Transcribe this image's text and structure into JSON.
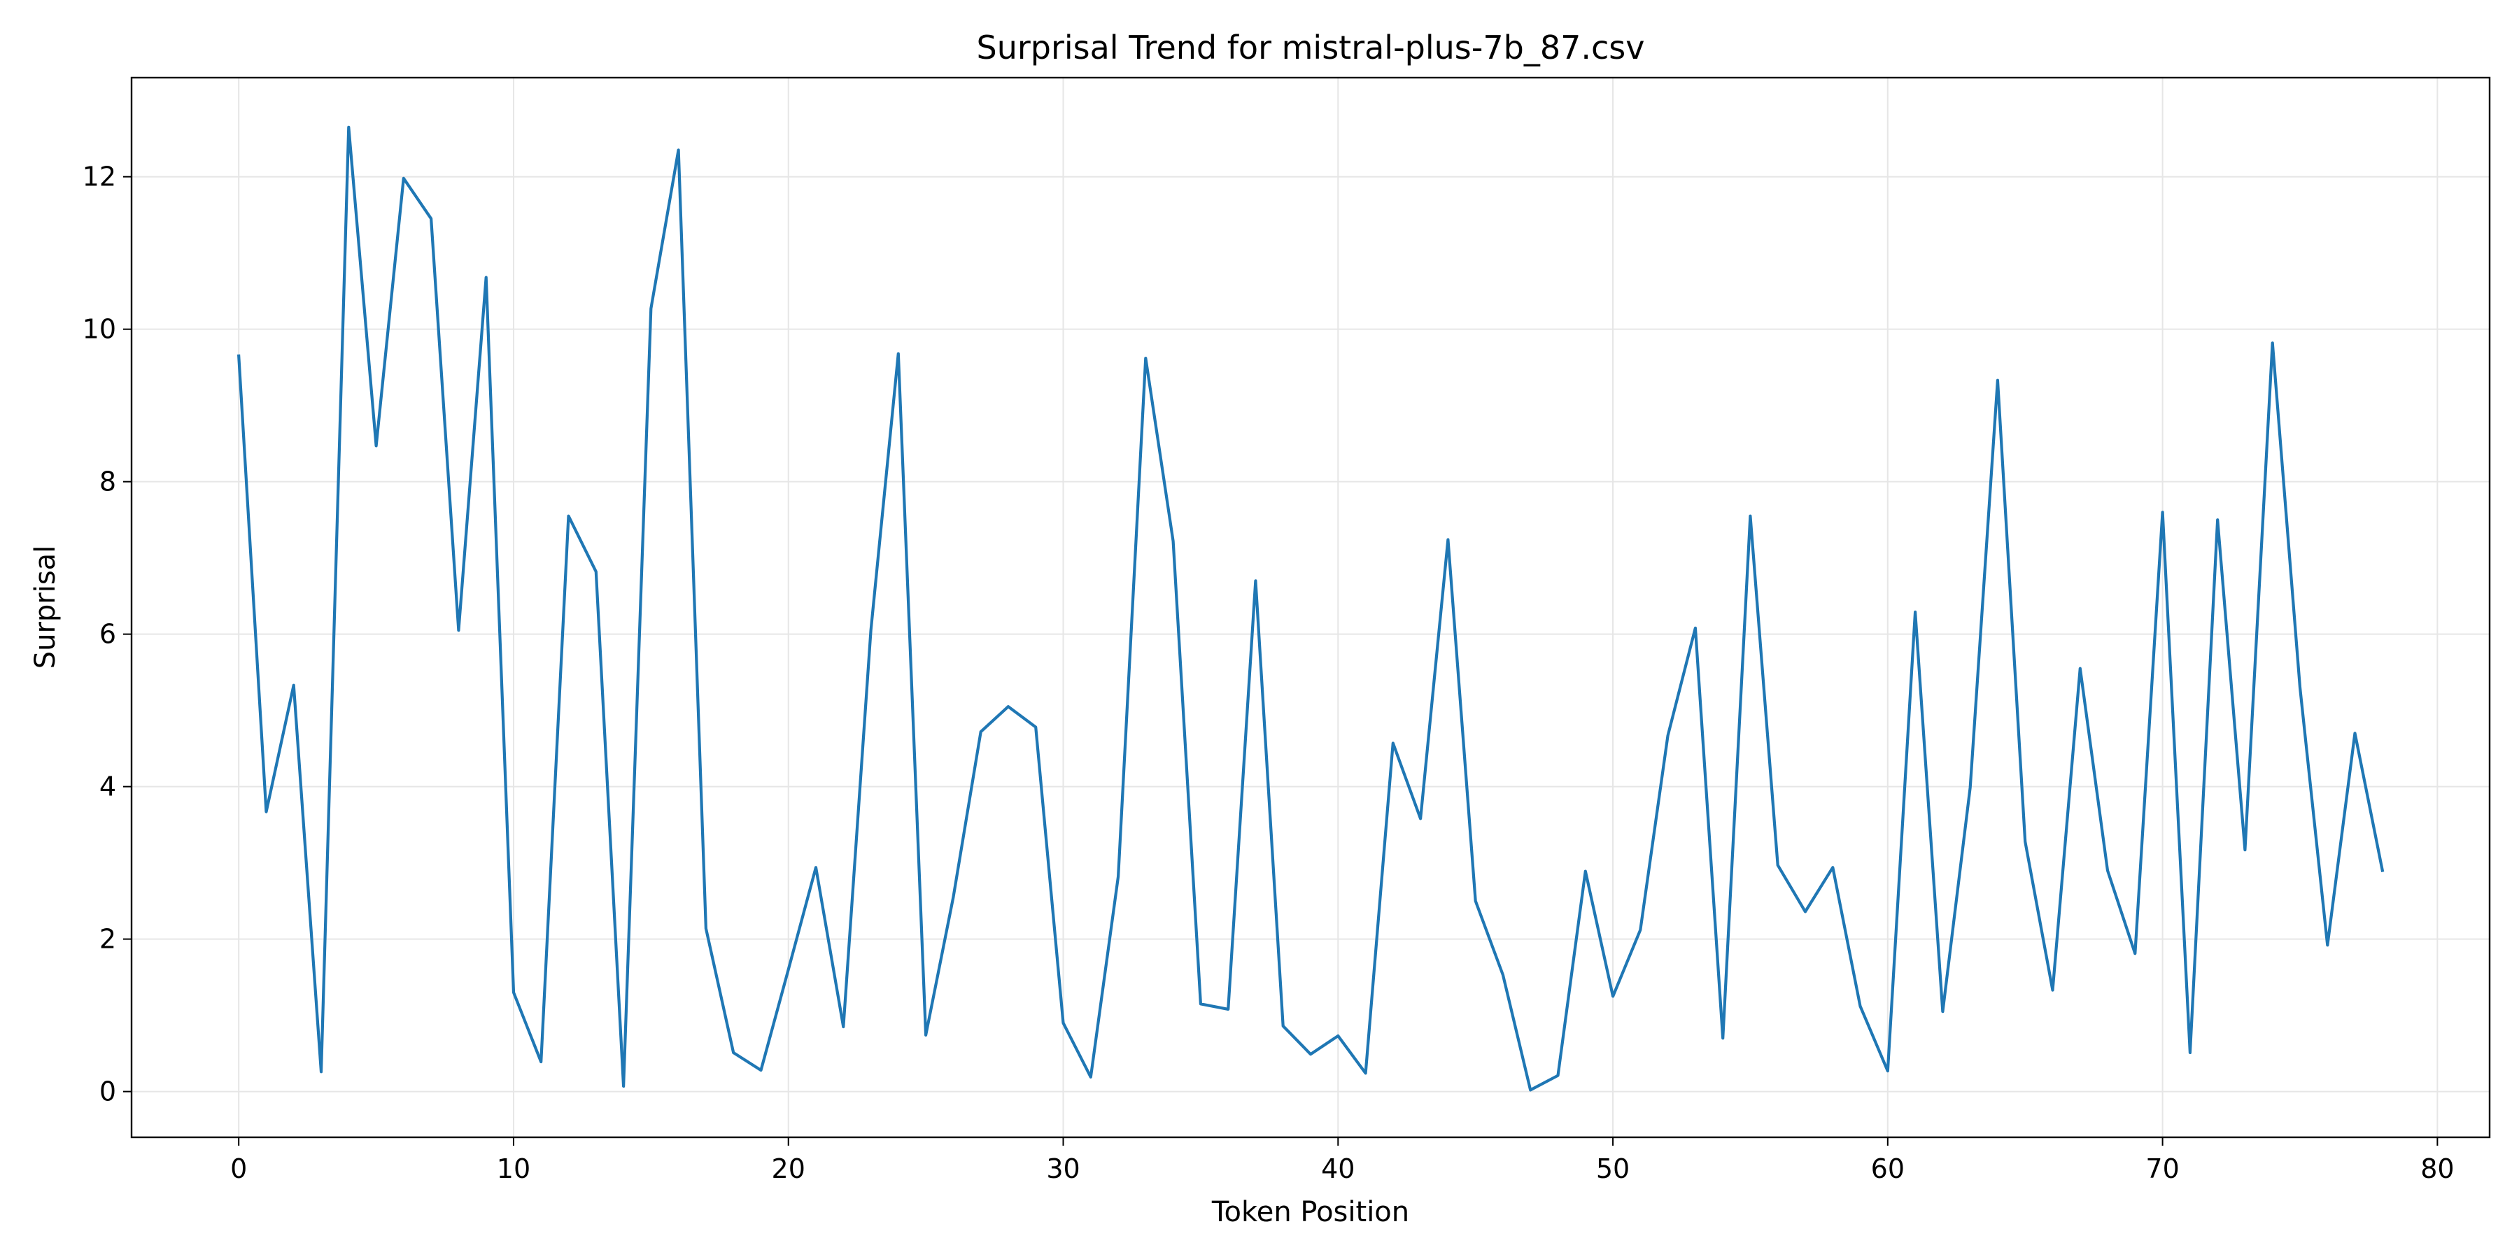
{
  "chart_data": {
    "type": "line",
    "title": "Surprisal Trend for mistral-plus-7b_87.csv",
    "xlabel": "Token Position",
    "ylabel": "Surprisal",
    "xlim": [
      -3.9,
      81.9
    ],
    "ylim": [
      -0.6,
      13.3
    ],
    "xticks": [
      0,
      10,
      20,
      30,
      40,
      50,
      60,
      70,
      80
    ],
    "yticks": [
      0,
      2,
      4,
      6,
      8,
      10,
      12
    ],
    "grid": true,
    "legend": "none",
    "colors": {
      "line": "#1f77b4",
      "grid": "#e6e6e6",
      "axes": "#000000"
    },
    "series": [
      {
        "x": [
          0,
          1,
          2,
          3,
          4,
          5,
          6,
          7,
          8,
          9,
          10,
          11,
          12,
          13,
          14,
          15,
          16,
          17,
          18,
          19,
          20,
          21,
          22,
          23,
          24,
          25,
          26,
          27,
          28,
          29,
          30,
          31,
          32,
          33,
          34,
          35,
          36,
          37,
          38,
          39,
          40,
          41,
          42,
          43,
          44,
          45,
          46,
          47,
          48,
          49,
          50,
          51,
          52,
          53,
          54,
          55,
          56,
          57,
          58,
          59,
          60,
          61,
          62,
          63,
          64,
          65,
          66,
          67,
          68,
          69,
          70,
          71,
          72,
          73,
          74,
          75,
          76,
          77,
          78
        ],
        "values": [
          9.65,
          3.67,
          5.33,
          0.26,
          12.65,
          8.47,
          11.98,
          11.45,
          6.05,
          10.68,
          1.3,
          0.39,
          7.55,
          6.82,
          0.07,
          10.27,
          12.35,
          2.14,
          0.51,
          0.28,
          1.6,
          2.94,
          0.85,
          6.05,
          9.68,
          0.74,
          2.55,
          4.72,
          5.05,
          4.78,
          0.9,
          0.19,
          2.82,
          9.62,
          7.22,
          1.15,
          1.08,
          6.7,
          0.86,
          0.49,
          0.73,
          0.24,
          4.57,
          3.58,
          7.24,
          2.5,
          1.53,
          0.02,
          0.21,
          2.89,
          1.25,
          2.12,
          4.67,
          6.08,
          0.7,
          7.55,
          2.97,
          2.36,
          2.94,
          1.12,
          0.27,
          6.29,
          1.05,
          3.99,
          9.33,
          3.28,
          1.33,
          5.55,
          2.9,
          1.81,
          7.6,
          0.51,
          7.5,
          3.17,
          9.82,
          5.3,
          1.92,
          4.7,
          2.9
        ]
      }
    ]
  }
}
